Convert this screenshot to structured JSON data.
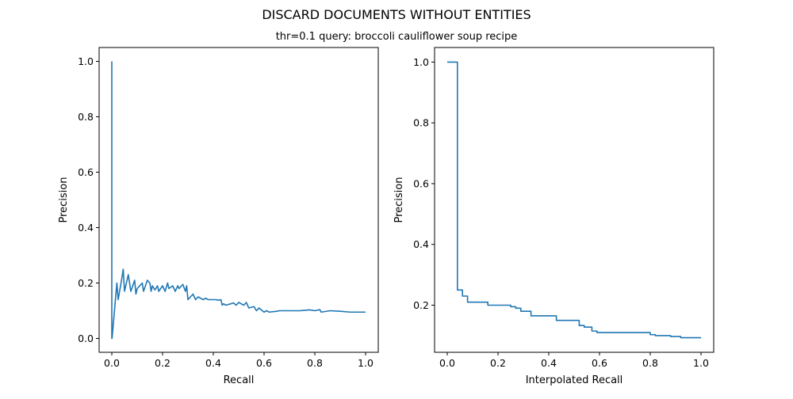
{
  "figure": {
    "title": "DISCARD DOCUMENTS WITHOUT ENTITIES",
    "subtitle": "thr=0.1    query: broccoli cauliflower soup recipe"
  },
  "chart_data": [
    {
      "type": "line",
      "name": "precision-recall",
      "xlabel": "Recall",
      "ylabel": "Precision",
      "xlim": [
        -0.05,
        1.05
      ],
      "ylim": [
        -0.05,
        1.05
      ],
      "xticks": [
        0.0,
        0.2,
        0.4,
        0.6,
        0.8,
        1.0
      ],
      "yticks": [
        0.0,
        0.2,
        0.4,
        0.6,
        0.8,
        1.0
      ],
      "tick_labels_x": [
        "0.0",
        "0.2",
        "0.4",
        "0.6",
        "0.8",
        "1.0"
      ],
      "tick_labels_y": [
        "0.0",
        "0.2",
        "0.4",
        "0.6",
        "0.8",
        "1.0"
      ],
      "grid": false,
      "line_color": "#1f77b4",
      "series": [
        {
          "x": [
            0,
            0,
            0.001,
            0.02,
            0.025,
            0.04,
            0.045,
            0.05,
            0.065,
            0.07,
            0.075,
            0.09,
            0.095,
            0.1,
            0.12,
            0.125,
            0.14,
            0.15,
            0.155,
            0.16,
            0.17,
            0.18,
            0.185,
            0.2,
            0.21,
            0.22,
            0.225,
            0.24,
            0.25,
            0.26,
            0.265,
            0.28,
            0.29,
            0.295,
            0.3,
            0.32,
            0.33,
            0.34,
            0.36,
            0.37,
            0.38,
            0.41,
            0.42,
            0.43,
            0.435,
            0.44,
            0.45,
            0.48,
            0.49,
            0.5,
            0.52,
            0.53,
            0.54,
            0.56,
            0.57,
            0.58,
            0.6,
            0.61,
            0.62,
            0.65,
            0.66,
            0.7,
            0.74,
            0.78,
            0.8,
            0.82,
            0.825,
            0.86,
            0.9,
            0.94,
            0.97,
            1.0
          ],
          "y": [
            1.0,
            0.0,
            0.001,
            0.2,
            0.14,
            0.22,
            0.25,
            0.17,
            0.23,
            0.2,
            0.17,
            0.21,
            0.16,
            0.18,
            0.2,
            0.17,
            0.21,
            0.2,
            0.17,
            0.19,
            0.175,
            0.19,
            0.17,
            0.19,
            0.17,
            0.2,
            0.18,
            0.19,
            0.17,
            0.19,
            0.18,
            0.195,
            0.17,
            0.19,
            0.14,
            0.16,
            0.14,
            0.15,
            0.14,
            0.145,
            0.14,
            0.14,
            0.138,
            0.14,
            0.12,
            0.125,
            0.12,
            0.128,
            0.12,
            0.13,
            0.12,
            0.13,
            0.11,
            0.115,
            0.1,
            0.11,
            0.095,
            0.1,
            0.095,
            0.098,
            0.1,
            0.1,
            0.1,
            0.103,
            0.1,
            0.104,
            0.095,
            0.1,
            0.098,
            0.095,
            0.095,
            0.095
          ]
        }
      ]
    },
    {
      "type": "line",
      "name": "interpolated-precision-recall",
      "step": true,
      "xlabel": "Interpolated Recall",
      "ylabel": "Precision",
      "xlim": [
        -0.05,
        1.05
      ],
      "ylim": [
        0.045,
        1.048
      ],
      "xticks": [
        0.0,
        0.2,
        0.4,
        0.6,
        0.8,
        1.0
      ],
      "yticks": [
        0.2,
        0.4,
        0.6,
        0.8,
        1.0
      ],
      "tick_labels_x": [
        "0.0",
        "0.2",
        "0.4",
        "0.6",
        "0.8",
        "1.0"
      ],
      "tick_labels_y": [
        "0.2",
        "0.4",
        "0.6",
        "0.8",
        "1.0"
      ],
      "grid": false,
      "line_color": "#1f77b4",
      "series": [
        {
          "x": [
            0,
            0.04,
            0.06,
            0.08,
            0.16,
            0.25,
            0.27,
            0.29,
            0.33,
            0.43,
            0.52,
            0.54,
            0.57,
            0.59,
            0.8,
            0.82,
            0.88,
            0.92,
            1.0
          ],
          "y": [
            1.0,
            0.25,
            0.23,
            0.21,
            0.2,
            0.195,
            0.19,
            0.18,
            0.165,
            0.15,
            0.133,
            0.128,
            0.115,
            0.11,
            0.103,
            0.1,
            0.097,
            0.093,
            0.093
          ]
        }
      ]
    }
  ]
}
